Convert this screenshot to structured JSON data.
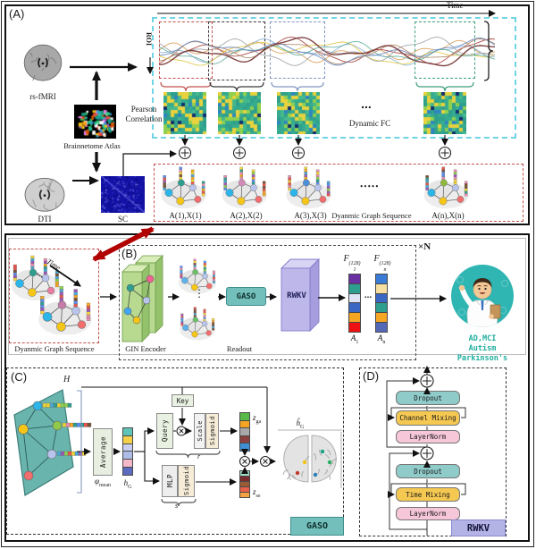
{
  "panelA": {
    "label": "(A)",
    "rsfmri_label": "rs-fMRI",
    "atlas_label": "Brainnetome Atlas",
    "dti_label": "DTI",
    "sc_label": "SC",
    "time_label": "Time",
    "roi_label": "ROI",
    "pearson_line1": "Pearson",
    "pearson_line2": "Correlation",
    "dynamic_fc_label": "Dynamic FC",
    "fc_dots": "...",
    "graph_dots": "•••••",
    "sequence_label": "Dyanmic Graph Sequence",
    "graph_labels": [
      "A(1),X(1)",
      "A(2),X(2)",
      "A(3),X(3)",
      "A(n),X(n)"
    ]
  },
  "panelB": {
    "label": "(B)",
    "repeat_label": "×N",
    "sequence_label": "Dyanmic Graph Sequence",
    "seq_dots": "···",
    "time_label": "Time",
    "gin_label": "GIN Encoder",
    "readout_label": "Readout",
    "readout_dots": "⋮",
    "gaso_label": "GASO",
    "rwkv_label": "RWKV",
    "f_base": "F",
    "f_sup": "(128)",
    "f1_sub": "1",
    "fn_sub": "n",
    "vector_dots": "...",
    "a_base": "A",
    "a1_sub": "1",
    "an_sub": "n",
    "diagnosis_line1": "AD,MCI",
    "diagnosis_line2": "Autism",
    "diagnosis_line3": "Parkinson's"
  },
  "panelC": {
    "label": "(C)",
    "h_matrix_label": "H",
    "average_label": "Average",
    "phi_base": "φ",
    "phi_sub": "mean",
    "hg_base": "h",
    "hg_sub": "G",
    "key_label": "Key",
    "query_label": "Query",
    "scale_label": "Scale",
    "sigmoid_label": "Sigmoid",
    "mlp_label": "MLP",
    "r_label": "r",
    "s_label": "s",
    "z_base": "z",
    "zga_sub": "ga",
    "zse_sub": "se",
    "hg_tilde_base": "h̃",
    "gaso_label": "GASO"
  },
  "panelD": {
    "label": "(D)",
    "dropout_label": "Dropout",
    "channel_mixing_label": "Channel Mixing",
    "time_mixing_label": "Time Mixing",
    "layernorm_label": "LayerNorm",
    "rwkv_label": "RWKV"
  },
  "decor": {
    "accent_cyan": "#6fd4e4",
    "accent_red": "#c0504d",
    "arrow_red": "#b00000",
    "teal_box": "#72bfbc",
    "doctor_bg": "#2fb5b2",
    "diagnosis_color": "#1fae9e",
    "dropout_color": "#8fcbc9",
    "mixing_color": "#f5c852",
    "layernorm_color": "#f6c6d9",
    "rwkv_box_color": "#b3b3e6",
    "signal_colors": [
      "#d9a05f",
      "#8ab4d8",
      "#a94442",
      "#e3c84a",
      "#63b0a0",
      "#9fa4ab",
      "#b08968",
      "#6a89c0",
      "#7a3b3b"
    ],
    "f1_cells": [
      "#6a2fa0",
      "#2e9e8f",
      "#dce4f5",
      "#3a66c4",
      "#f5a623",
      "#ee1111"
    ],
    "fn_cells": [
      "#3a7bd5",
      "#f7dfa0",
      "#3a66c4",
      "#2e9e8f",
      "#f5a623",
      "#5468b8"
    ],
    "hg_cells": [
      "#5fc4b8",
      "#f5d04a",
      "#c9cff0",
      "#aebce8",
      "#f4b8c8",
      "#5c6bc0"
    ],
    "zga_cells": [
      "#56b94a",
      "#f4a322",
      "#a8a8a8",
      "#8b4040",
      "#3f8fd4"
    ],
    "zse_cells": [
      "#9fdcc8",
      "#7b2d2d",
      "#9a5c34",
      "#e8604c",
      "#f4a343"
    ],
    "bar_palette": [
      "#e8554c",
      "#f5a623",
      "#4aa8d8",
      "#2e9e8f",
      "#f0d43a",
      "#9b59b6",
      "#5b8def",
      "#e88fb0",
      "#8fd14f",
      "#7b5234"
    ],
    "graph_nodes": {
      "a1": [
        "#2bb5e8",
        "#2e9e8f",
        "#b8c4ec",
        "#f5c518",
        "#f26d6d"
      ],
      "a2": [
        "#2bb5e8",
        "#d48ab8",
        "#b8c4ec",
        "#f5c518",
        "#f26d6d"
      ],
      "a3": [
        "#2bb5e8",
        "#4a90d9",
        "#b8c4ec",
        "#f5c518",
        "#f26d6d"
      ],
      "a4": [
        "#2bb5e8",
        "#8fb93a",
        "#b8c4ec",
        "#f5c518",
        "#f26d6d"
      ],
      "b1": [
        "#2bb5e8",
        "#2e9e8f",
        "#b8c4ec",
        "#f5c518",
        "#e87da0"
      ],
      "b2": [
        "#2bb5e8",
        "#c77ba8",
        "#b8c4ec",
        "#f5c518",
        "#f26d6d"
      ],
      "r1": [
        "#5fb0e8",
        "#6abf69",
        "#b8c4ec",
        "#f5c518",
        "#f26d6d"
      ]
    },
    "para_nodes": [
      "#2bb5e8",
      "#f5c518",
      "#8fc94a",
      "#b8c4ec",
      "#f26d6d"
    ],
    "heatmap_colors": [
      "#2fa08c",
      "#46b98c",
      "#8fd14f",
      "#e8d23e",
      "#2e86c1",
      "#13306e"
    ],
    "atlas_colors": [
      "#e84c3d",
      "#f39c12",
      "#f1c40f",
      "#2ecc71",
      "#1abc9c",
      "#3498db",
      "#9b59b6",
      "#e87ee3",
      "#ffffff",
      "#16a085",
      "#d35400"
    ]
  }
}
